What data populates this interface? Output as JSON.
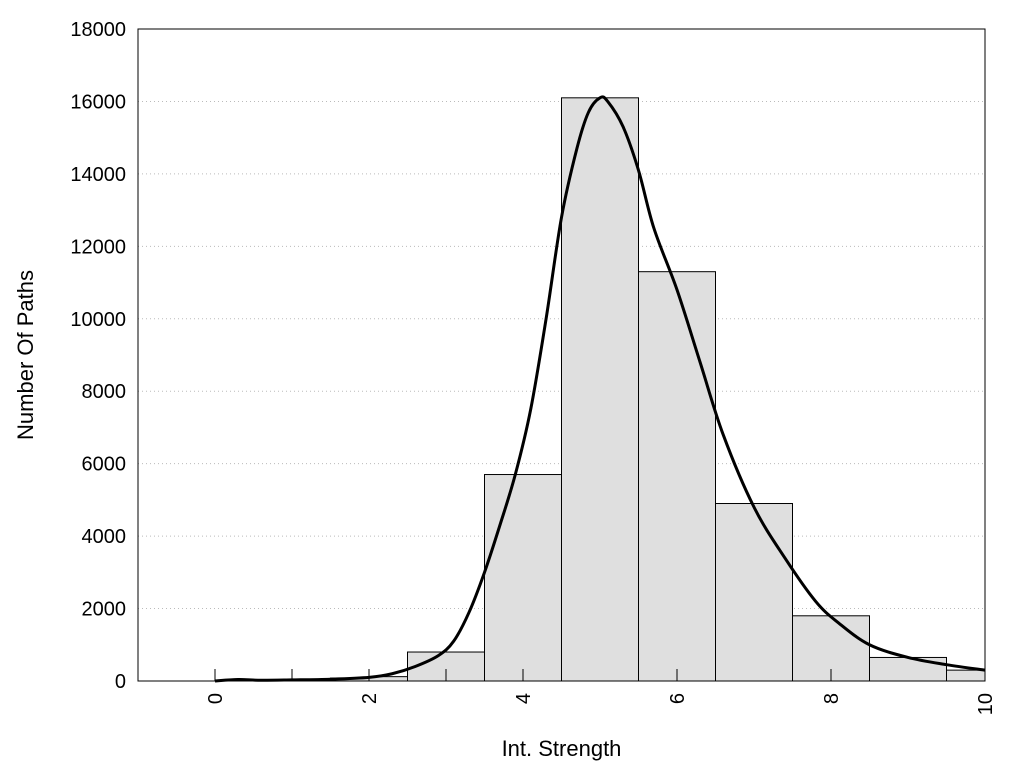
{
  "chart_data": {
    "type": "bar",
    "title": "",
    "xlabel": "Int. Strength",
    "ylabel": "Number Of Paths",
    "xlim": [
      -1,
      10
    ],
    "ylim": [
      0,
      18000
    ],
    "x_ticks": [
      0,
      2,
      4,
      6,
      8,
      10
    ],
    "y_ticks": [
      0,
      2000,
      4000,
      6000,
      8000,
      10000,
      12000,
      14000,
      16000,
      18000
    ],
    "grid": "horizontal-dotted",
    "bars": [
      {
        "x0": 0.0,
        "x1": 0.5,
        "value": 20
      },
      {
        "x0": 0.5,
        "x1": 1.0,
        "value": 15
      },
      {
        "x0": 1.0,
        "x1": 1.5,
        "value": 40
      },
      {
        "x0": 1.5,
        "x1": 2.0,
        "value": 80
      },
      {
        "x0": 2.0,
        "x1": 2.5,
        "value": 120
      },
      {
        "x0": 2.5,
        "x1": 3.5,
        "value": 800
      },
      {
        "x0": 3.5,
        "x1": 4.5,
        "value": 5700
      },
      {
        "x0": 4.5,
        "x1": 5.5,
        "value": 16100
      },
      {
        "x0": 5.5,
        "x1": 6.5,
        "value": 11300
      },
      {
        "x0": 6.5,
        "x1": 7.5,
        "value": 4900
      },
      {
        "x0": 7.5,
        "x1": 8.5,
        "value": 1800
      },
      {
        "x0": 8.5,
        "x1": 9.5,
        "value": 650
      },
      {
        "x0": 9.5,
        "x1": 10.0,
        "value": 300
      }
    ],
    "curve": {
      "x": [
        0.0,
        0.3,
        0.6,
        1.0,
        1.5,
        2.0,
        2.3,
        2.6,
        2.9,
        3.1,
        3.3,
        3.5,
        3.7,
        3.9,
        4.1,
        4.3,
        4.5,
        4.7,
        4.85,
        5.0,
        5.1,
        5.3,
        5.5,
        5.7,
        6.0,
        6.3,
        6.6,
        7.0,
        7.4,
        7.8,
        8.1,
        8.5,
        9.0,
        9.5,
        10.0
      ],
      "y": [
        0,
        40,
        20,
        30,
        50,
        100,
        200,
        400,
        700,
        1100,
        1900,
        3000,
        4300,
        5700,
        7500,
        10000,
        12800,
        14700,
        15700,
        16100,
        16000,
        15300,
        14100,
        12500,
        10800,
        8800,
        6800,
        4800,
        3400,
        2200,
        1600,
        1000,
        650,
        450,
        300
      ]
    },
    "bar_color": "#dfdfdf",
    "line_color": "#000000"
  }
}
